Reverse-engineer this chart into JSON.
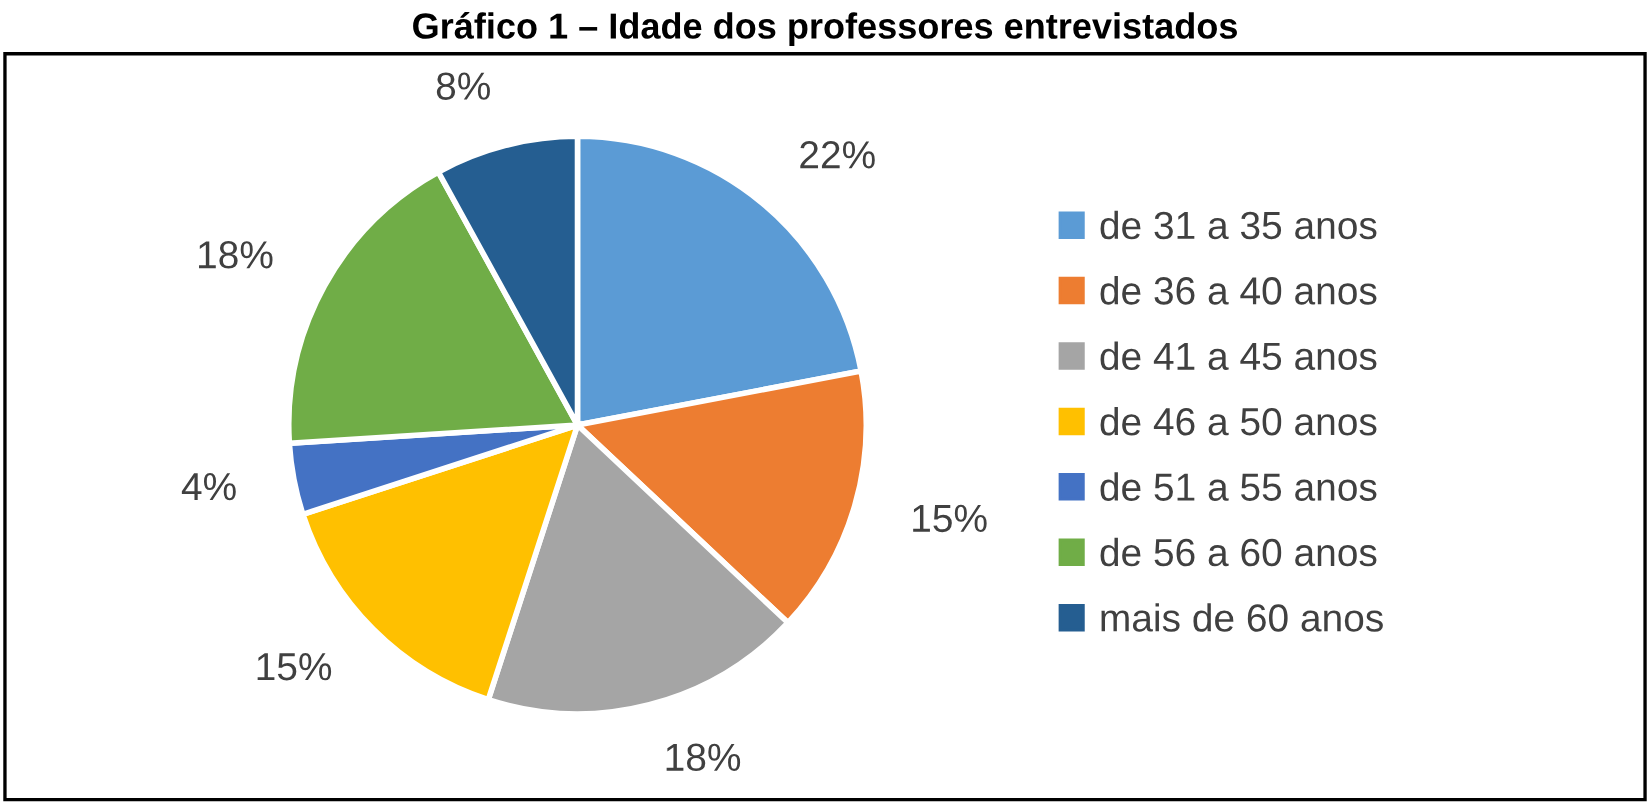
{
  "chart_data": {
    "type": "pie",
    "title": "Gráfico 1 – Idade dos professores entrevistados",
    "categories": [
      "de 31 a 35 anos",
      "de 36 a 40 anos",
      "de 41 a 45 anos",
      "de 46 a 50 anos",
      "de 51 a 55 anos",
      "de 56 a 60 anos",
      "mais de 60 anos"
    ],
    "values": [
      22,
      15,
      18,
      15,
      4,
      18,
      8
    ],
    "colors": [
      "#5b9bd5",
      "#ed7d31",
      "#a5a5a5",
      "#ffc000",
      "#4472c4",
      "#70ad47",
      "#255e91"
    ],
    "value_labels": [
      "22%",
      "15%",
      "18%",
      "15%",
      "4%",
      "18%",
      "8%"
    ],
    "legend": "right"
  }
}
